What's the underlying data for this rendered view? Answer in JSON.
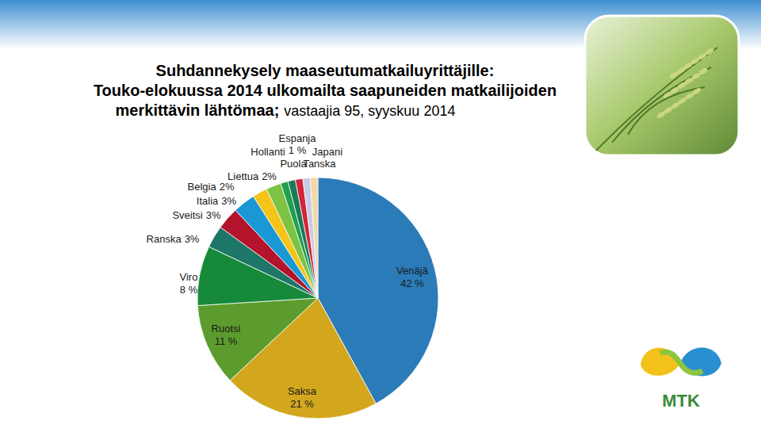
{
  "chart_data": {
    "type": "pie",
    "title": "Suhdannekysely maaseutumatkailuyrittäjille:\nTouko-elokuussa 2014 ulkomailta saapuneiden matkailijoiden\nmerkittävin lähtömaa;",
    "subtitle": "vastaajia 95, syyskuu 2014",
    "categories": [
      "Venäjä",
      "Saksa",
      "Ruotsi",
      "Viro",
      "Ranska",
      "Sveitsi",
      "Italia",
      "Belgia",
      "Liettua",
      "Hollanti",
      "Espanja",
      "Puola",
      "Japani",
      "Tanska"
    ],
    "values": [
      42,
      21,
      11,
      8,
      3,
      3,
      3,
      2,
      2,
      1,
      1,
      1,
      1,
      1
    ],
    "value_labels": [
      "42 %",
      "21 %",
      "11 %",
      "8 %",
      "3%",
      "3%",
      "3%",
      "2%",
      "2%",
      null,
      null,
      null,
      null,
      null
    ],
    "colors": [
      "#2b7bb9",
      "#d2a71e",
      "#5c9c2e",
      "#168a3a",
      "#1d7668",
      "#b3132b",
      "#1a98d5",
      "#f4c419",
      "#7cc243",
      "#22a04c",
      "#1a7a5a",
      "#d2243a",
      "#c9cbe2",
      "#f1d8a6"
    ],
    "annotations": [
      "1 %"
    ],
    "data_labels": true
  },
  "logo": {
    "text": "MTK"
  }
}
